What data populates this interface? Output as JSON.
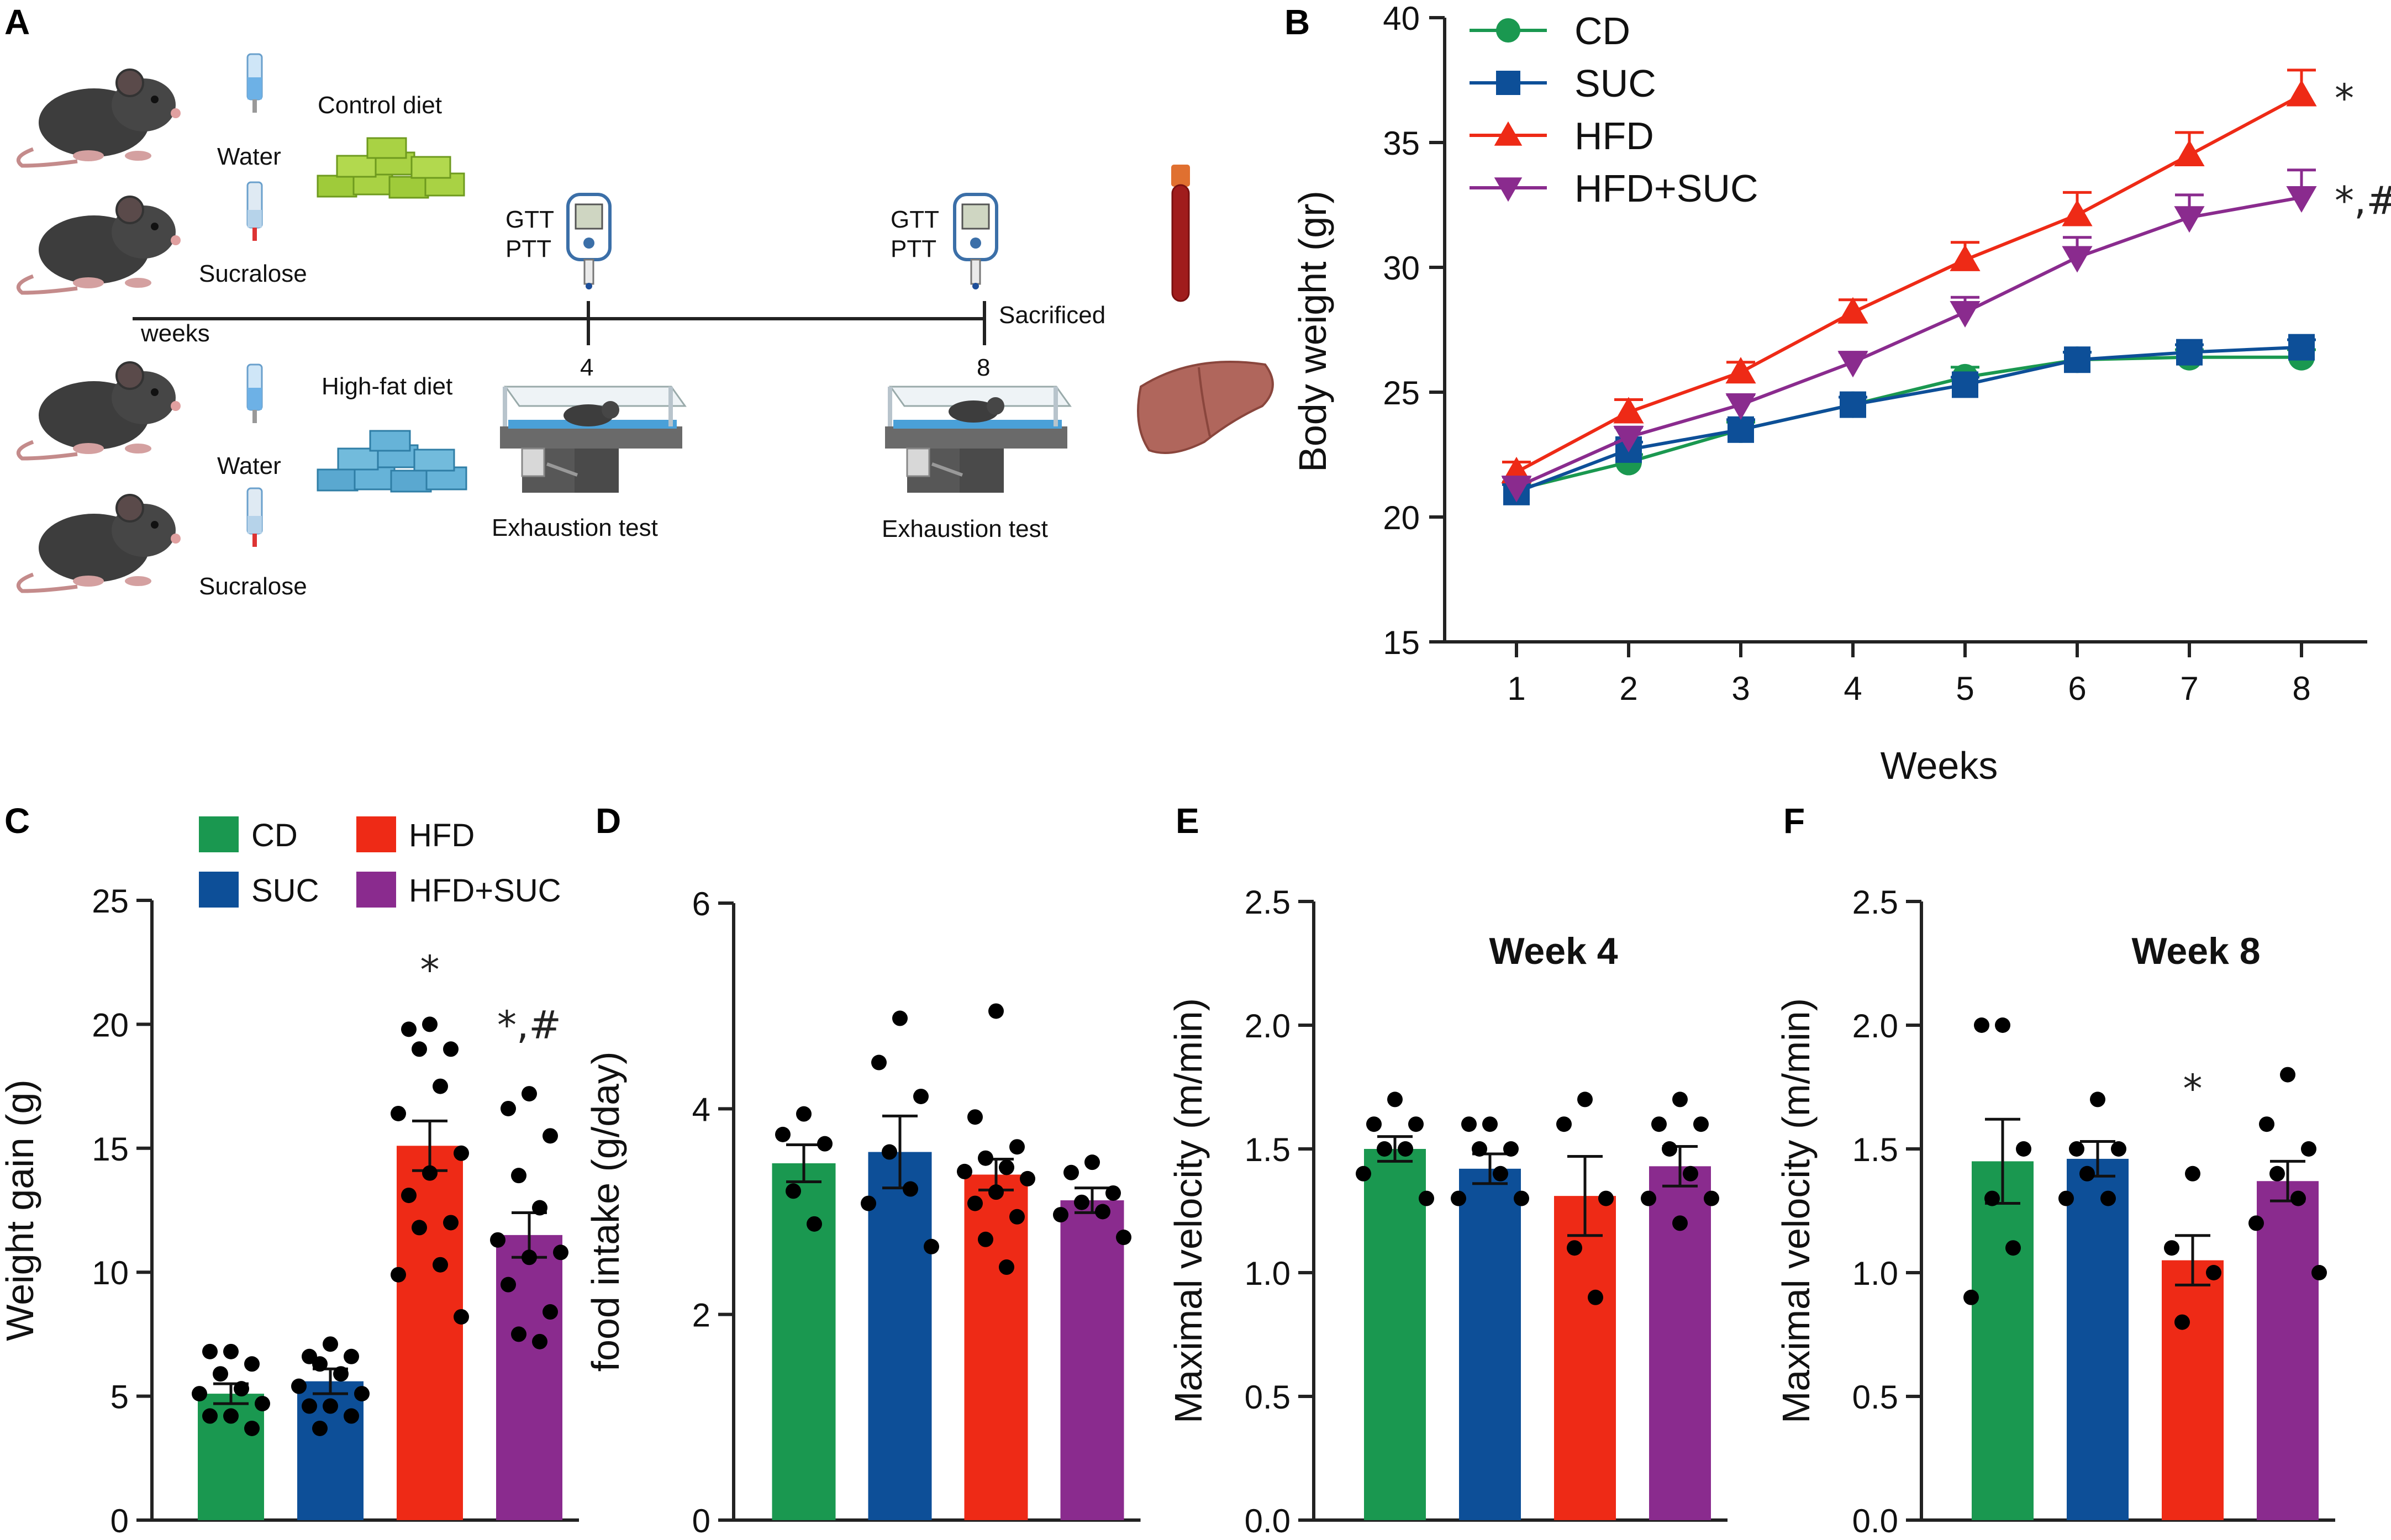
{
  "panels": {
    "A": {
      "letter": "A",
      "labels": {
        "water1": "Water",
        "control_diet": "Control diet",
        "sucralose1": "Sucralose",
        "weeks": "weeks",
        "gtt1": "GTT",
        "ptt1": "PTT",
        "gtt2": "GTT",
        "ptt2": "PTT",
        "sacrificed": "Sacrificed",
        "week4": "4",
        "week8": "8",
        "high_fat_diet": "High-fat diet",
        "water2": "Water",
        "sucralose2": "Sucralose",
        "exhaustion1": "Exhaustion test",
        "exhaustion2": "Exhaustion test"
      },
      "icons": [
        "mouse-icon",
        "water-bottle-icon",
        "food-pellets-icon",
        "glucometer-icon",
        "treadmill-icon",
        "blood-tube-icon",
        "liver-icon"
      ]
    },
    "B": {
      "letter": "B"
    },
    "C": {
      "letter": "C"
    },
    "D": {
      "letter": "D"
    },
    "E": {
      "letter": "E"
    },
    "F": {
      "letter": "F"
    }
  },
  "colors": {
    "CD": "#1a9850",
    "SUC": "#0d4f98",
    "HFD": "#ee2a16",
    "HFD+SUC": "#8a2b8e"
  },
  "chart_data": [
    {
      "id": "B",
      "type": "line",
      "xlabel": "Weeks",
      "ylabel": "Body weight (gr)",
      "ylim": [
        15,
        40
      ],
      "yticks": [
        15,
        20,
        25,
        30,
        35,
        40
      ],
      "x": [
        1,
        2,
        3,
        4,
        5,
        6,
        7,
        8
      ],
      "legend_position": "top-left",
      "series": [
        {
          "name": "CD",
          "marker": "circle",
          "values": [
            21.1,
            22.2,
            23.5,
            24.5,
            25.6,
            26.3,
            26.4,
            26.4
          ],
          "errors": [
            0.3,
            0.3,
            0.3,
            0.3,
            0.4,
            0.3,
            0.3,
            0.3
          ]
        },
        {
          "name": "SUC",
          "marker": "square",
          "values": [
            21.0,
            22.7,
            23.5,
            24.5,
            25.3,
            26.3,
            26.6,
            26.8
          ],
          "errors": [
            0.3,
            0.3,
            0.4,
            0.3,
            0.3,
            0.3,
            0.3,
            0.3
          ]
        },
        {
          "name": "HFD",
          "marker": "triangle-up",
          "values": [
            21.8,
            24.2,
            25.8,
            28.2,
            30.3,
            32.1,
            34.5,
            36.9
          ],
          "errors": [
            0.4,
            0.5,
            0.4,
            0.5,
            0.7,
            0.9,
            0.9,
            1.0
          ]
        },
        {
          "name": "HFD+SUC",
          "marker": "triangle-down",
          "values": [
            21.2,
            23.2,
            24.5,
            26.2,
            28.2,
            30.4,
            32.0,
            32.8
          ],
          "errors": [
            0.4,
            0.4,
            0.4,
            0.4,
            0.6,
            0.8,
            0.9,
            1.1
          ]
        }
      ],
      "annotations": [
        {
          "series": "HFD",
          "text": "*"
        },
        {
          "series": "HFD+SUC",
          "text": "*,#"
        }
      ]
    },
    {
      "id": "C",
      "type": "bar",
      "ylabel": "Weight gain (g)",
      "ylim": [
        0,
        25
      ],
      "yticks": [
        0,
        5,
        10,
        15,
        20,
        25
      ],
      "categories": [
        "CD",
        "SUC",
        "HFD",
        "HFD+SUC"
      ],
      "values": [
        5.1,
        5.6,
        15.1,
        11.5
      ],
      "errors": [
        0.4,
        0.5,
        1.0,
        0.9
      ],
      "points": [
        [
          6.8,
          6.8,
          6.3,
          5.9,
          5.3,
          5.1,
          4.7,
          4.2,
          4.2,
          3.7
        ],
        [
          7.1,
          6.6,
          6.6,
          6.3,
          5.9,
          5.4,
          5.1,
          4.6,
          4.6,
          4.2,
          3.7
        ],
        [
          20.0,
          19.8,
          19.0,
          19.0,
          17.5,
          16.4,
          14.8,
          14.0,
          13.1,
          12.0,
          11.8,
          10.3,
          9.9,
          8.2
        ],
        [
          17.2,
          16.6,
          15.5,
          13.9,
          12.6,
          11.3,
          10.8,
          10.6,
          9.5,
          8.4,
          7.5,
          7.2
        ]
      ],
      "annotations": [
        "",
        "",
        "*",
        "*,#"
      ],
      "legend": [
        "CD",
        "SUC",
        "HFD",
        "HFD+SUC"
      ]
    },
    {
      "id": "D",
      "type": "bar",
      "ylabel": "food intake (g/day)",
      "ylim": [
        0,
        6
      ],
      "yticks": [
        0,
        2,
        4,
        6
      ],
      "categories": [
        "CD",
        "SUC",
        "HFD",
        "HFD+SUC"
      ],
      "values": [
        3.47,
        3.58,
        3.36,
        3.11
      ],
      "errors": [
        0.18,
        0.35,
        0.15,
        0.12
      ],
      "points": [
        [
          3.95,
          3.75,
          3.66,
          3.2,
          2.88
        ],
        [
          4.88,
          4.45,
          4.12,
          3.58,
          3.22,
          3.08,
          2.66
        ],
        [
          4.95,
          3.92,
          3.63,
          3.52,
          3.43,
          3.39,
          3.32,
          3.19,
          3.08,
          2.95,
          2.73,
          2.46
        ],
        [
          3.48,
          3.38,
          3.18,
          3.09,
          3.0,
          2.97,
          2.75
        ]
      ]
    },
    {
      "id": "E",
      "type": "bar",
      "title": "Week 4",
      "ylabel": "Maximal velocity (m/min)",
      "ylim": [
        0.0,
        2.5
      ],
      "yticks": [
        "0.0",
        "0.5",
        "1.0",
        "1.5",
        "2.0",
        "2.5"
      ],
      "categories": [
        "CD",
        "SUC",
        "HFD",
        "HFD+SUC"
      ],
      "values": [
        1.5,
        1.42,
        1.31,
        1.43
      ],
      "errors": [
        0.05,
        0.06,
        0.16,
        0.08
      ],
      "points": [
        [
          1.7,
          1.6,
          1.6,
          1.5,
          1.5,
          1.4,
          1.3
        ],
        [
          1.6,
          1.6,
          1.5,
          1.5,
          1.4,
          1.3,
          1.3
        ],
        [
          1.7,
          1.6,
          1.3,
          1.1,
          0.9
        ],
        [
          1.7,
          1.6,
          1.6,
          1.5,
          1.4,
          1.3,
          1.3,
          1.2
        ]
      ]
    },
    {
      "id": "F",
      "type": "bar",
      "title": "Week 8",
      "ylabel": "Maximal velocity (m/min)",
      "ylim": [
        0.0,
        2.5
      ],
      "yticks": [
        "0.0",
        "0.5",
        "1.0",
        "1.5",
        "2.0",
        "2.5"
      ],
      "categories": [
        "CD",
        "SUC",
        "HFD",
        "HFD+SUC"
      ],
      "values": [
        1.45,
        1.46,
        1.05,
        1.37
      ],
      "errors": [
        0.17,
        0.07,
        0.1,
        0.08
      ],
      "points": [
        [
          2.0,
          2.0,
          1.5,
          1.3,
          1.1,
          0.9
        ],
        [
          1.7,
          1.5,
          1.5,
          1.4,
          1.3,
          1.3
        ],
        [
          1.4,
          1.1,
          1.0,
          0.8
        ],
        [
          1.8,
          1.6,
          1.5,
          1.4,
          1.3,
          1.2,
          1.0
        ]
      ],
      "annotations": [
        "",
        "",
        "*",
        ""
      ]
    }
  ]
}
